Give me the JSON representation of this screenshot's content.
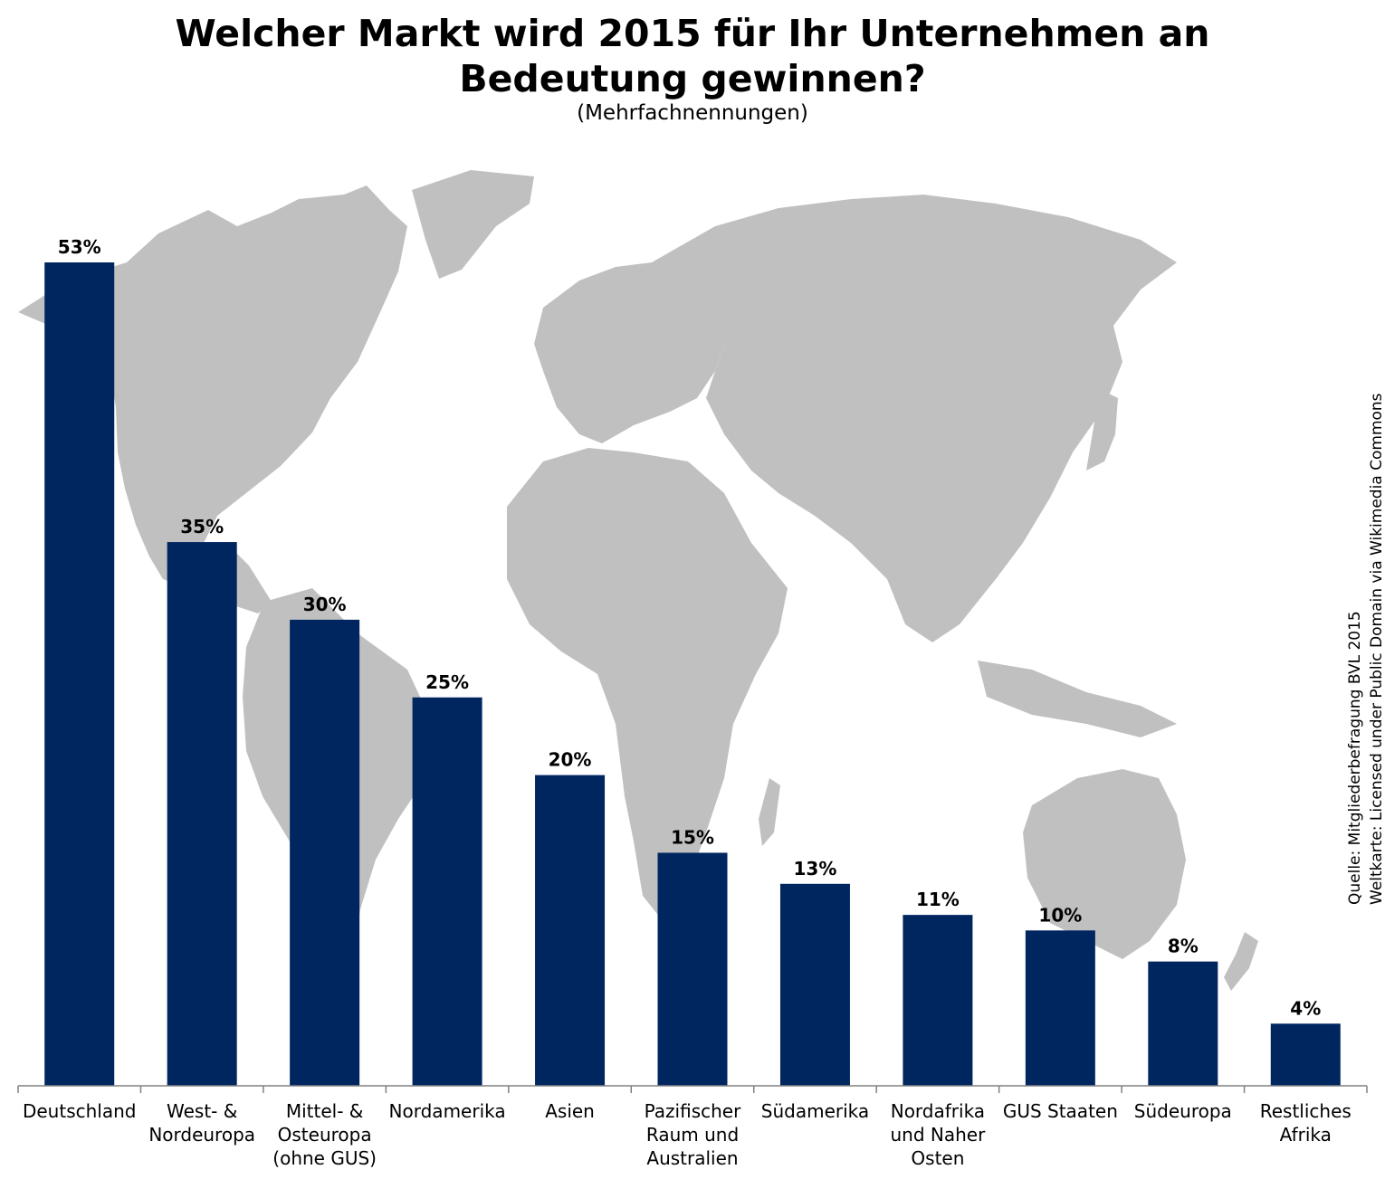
{
  "title_line1": "Welcher Markt wird 2015 für Ihr Unternehmen an",
  "title_line2": "Bedeutung gewinnen?",
  "subtitle": "(Mehrfachnennungen)",
  "source_line1": "Quelle: Mitgliederbefragung BVL 2015",
  "source_line2": "Weltkarte: Licensed under Public Domain via Wikimedia Commons",
  "colors": {
    "bar": "#002660",
    "map": "#c0c0c0",
    "axis": "#808080"
  },
  "chart_data": {
    "type": "bar",
    "title": "Welcher Markt wird 2015 für Ihr Unternehmen an Bedeutung gewinnen?",
    "subtitle": "(Mehrfachnennungen)",
    "categories": [
      [
        "Deutschland"
      ],
      [
        "West- &",
        "Nordeuropa"
      ],
      [
        "Mittel- &",
        "Osteuropa",
        "(ohne GUS)"
      ],
      [
        "Nordamerika"
      ],
      [
        "Asien"
      ],
      [
        "Pazifischer",
        "Raum und",
        "Australien"
      ],
      [
        "Südamerika"
      ],
      [
        "Nordafrika",
        "und Naher",
        "Osten"
      ],
      [
        "GUS Staaten"
      ],
      [
        "Südeuropa"
      ],
      [
        "Restliches",
        "Afrika"
      ]
    ],
    "values": [
      53,
      35,
      30,
      25,
      20,
      15,
      13,
      11,
      10,
      8,
      4
    ],
    "value_labels": [
      "53%",
      "35%",
      "30%",
      "25%",
      "20%",
      "15%",
      "13%",
      "11%",
      "10%",
      "8%",
      "4%"
    ],
    "ylim": [
      0,
      53
    ],
    "grid": false,
    "legend": "none",
    "background": "world-map"
  }
}
